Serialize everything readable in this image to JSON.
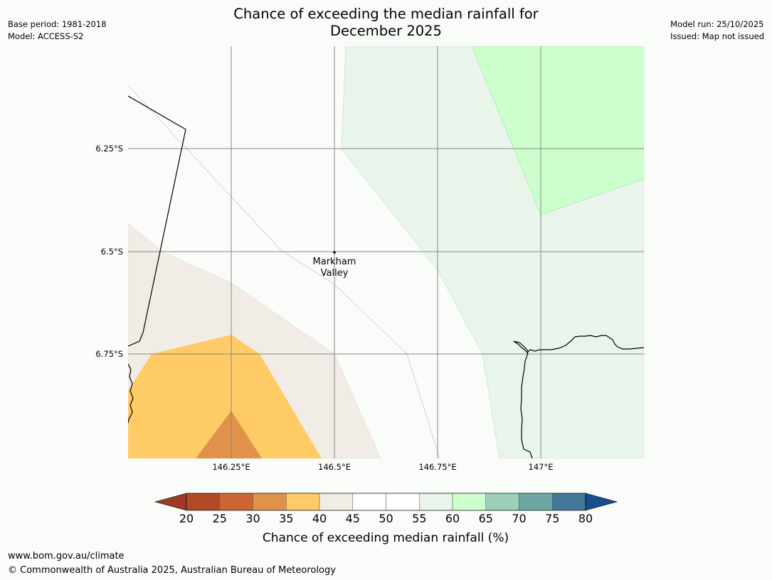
{
  "title": {
    "line1": "Chance of exceeding the median rainfall for",
    "line2": "December 2025"
  },
  "meta_left": {
    "base_period": "Base period: 1981-2018",
    "model": "Model: ACCESS-S2"
  },
  "meta_right": {
    "model_run": "Model run: 25/10/2025",
    "issued": "Issued: Map not issued"
  },
  "map": {
    "lat_labels": [
      "6.25°S",
      "6.5°S",
      "6.75°S"
    ],
    "lon_labels": [
      "146.25°E",
      "146.5°E",
      "146.75°E",
      "147°E"
    ],
    "place": {
      "line1": "Markham",
      "line2": "Valley"
    },
    "category_colors": {
      "30-35": "#e0924a",
      "35-40": "#fecb67",
      "40-45": "#f1ece6",
      "45-55": "#fafcf9",
      "55-60": "#e9f5eb",
      "60-65": "#ccffcc"
    },
    "gridline_color": "#888888",
    "coast_color": "#000000"
  },
  "colorbar": {
    "label": "Chance of exceeding median rainfall (%)",
    "ticks": [
      "20",
      "25",
      "30",
      "35",
      "40",
      "45",
      "50",
      "55",
      "60",
      "65",
      "70",
      "75",
      "80"
    ],
    "under_color": "#9e3a26",
    "over_color": "#184f8a",
    "segments": [
      "#b34a26",
      "#cc6532",
      "#e0924a",
      "#fecb67",
      "#f1ece6",
      "#ffffff",
      "#ffffff",
      "#e9f5eb",
      "#ccffcc",
      "#9ccfb8",
      "#6ea5a5",
      "#41789a"
    ]
  },
  "footer": {
    "url": "www.bom.gov.au/climate",
    "copyright": "© Commonwealth of Australia 2025, Australian Bureau of Meteorology"
  }
}
